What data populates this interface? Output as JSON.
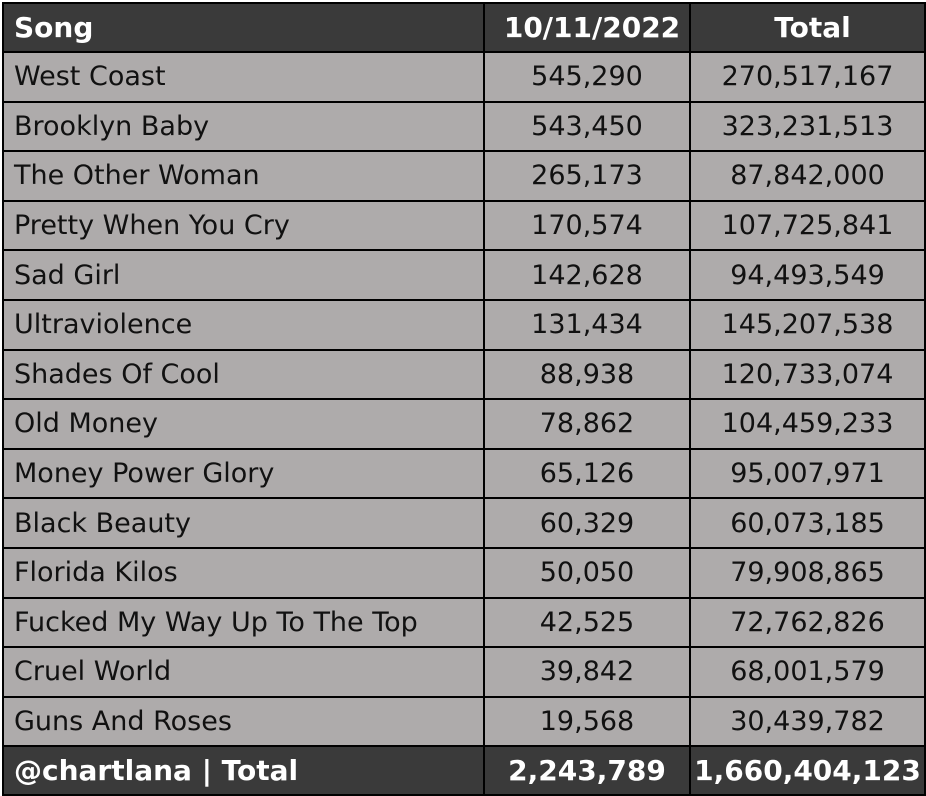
{
  "header": {
    "song": "Song",
    "date": "10/11/2022",
    "total": "Total"
  },
  "rows": [
    {
      "song": "West Coast",
      "daily": "545,290",
      "total": "270,517,167"
    },
    {
      "song": "Brooklyn Baby",
      "daily": "543,450",
      "total": "323,231,513"
    },
    {
      "song": "The Other Woman",
      "daily": "265,173",
      "total": "87,842,000"
    },
    {
      "song": "Pretty When You Cry",
      "daily": "170,574",
      "total": "107,725,841"
    },
    {
      "song": "Sad Girl",
      "daily": "142,628",
      "total": "94,493,549"
    },
    {
      "song": "Ultraviolence",
      "daily": "131,434",
      "total": "145,207,538"
    },
    {
      "song": "Shades Of Cool",
      "daily": "88,938",
      "total": "120,733,074"
    },
    {
      "song": "Old Money",
      "daily": "78,862",
      "total": "104,459,233"
    },
    {
      "song": "Money Power Glory",
      "daily": "65,126",
      "total": "95,007,971"
    },
    {
      "song": "Black Beauty",
      "daily": "60,329",
      "total": "60,073,185"
    },
    {
      "song": "Florida Kilos",
      "daily": "50,050",
      "total": "79,908,865"
    },
    {
      "song": "Fucked My Way Up To The Top",
      "daily": "42,525",
      "total": "72,762,826"
    },
    {
      "song": "Cruel World",
      "daily": "39,842",
      "total": "68,001,579"
    },
    {
      "song": "Guns And Roses",
      "daily": "19,568",
      "total": "30,439,782"
    }
  ],
  "footer": {
    "label": "@chartlana | Total",
    "daily": "2,243,789",
    "total": "1,660,404,123"
  },
  "colors": {
    "header_bg": "#3a3a3a",
    "row_bg": "#aeabab",
    "border": "#000000"
  }
}
